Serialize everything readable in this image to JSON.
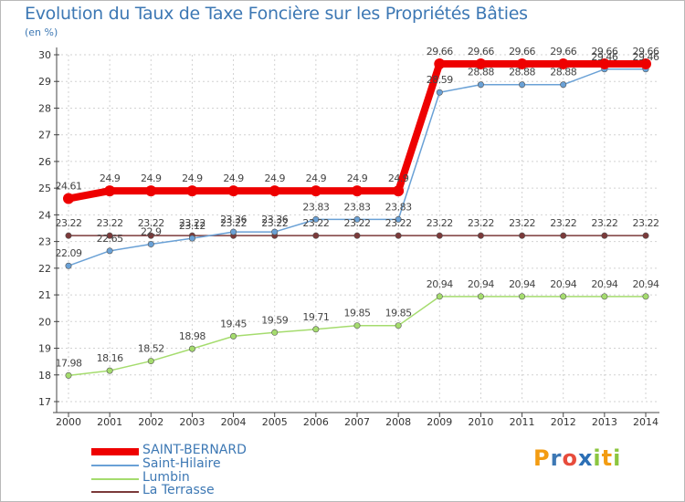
{
  "chart_data": {
    "type": "line",
    "title": "Evolution du Taux de Taxe Foncière sur les Propriétés Bâties",
    "ylabel": "(en %)",
    "xlabel": "",
    "categories": [
      "2000",
      "2001",
      "2002",
      "2003",
      "2004",
      "2005",
      "2006",
      "2007",
      "2008",
      "2009",
      "2010",
      "2011",
      "2012",
      "2013",
      "2014"
    ],
    "ylim": [
      17,
      30
    ],
    "yticks": [
      "17",
      "18",
      "19",
      "20",
      "21",
      "22",
      "23",
      "24",
      "25",
      "26",
      "27",
      "28",
      "29",
      "30"
    ],
    "series": [
      {
        "name": "SAINT-BERNARD",
        "color": "#ee0000",
        "values": [
          24.61,
          24.9,
          24.9,
          24.9,
          24.9,
          24.9,
          24.9,
          24.9,
          24.9,
          29.66,
          29.66,
          29.66,
          29.66,
          29.66,
          29.66
        ],
        "labels": [
          "24.61",
          "24.9",
          "24.9",
          "24.9",
          "24.9",
          "24.9",
          "24.9",
          "24.9",
          "24.9",
          "29.66",
          "29.66",
          "29.66",
          "29.66",
          "29.66",
          "29.66"
        ]
      },
      {
        "name": "Saint-Hilaire",
        "color": "#6aa1d6",
        "values": [
          22.09,
          22.65,
          22.9,
          23.12,
          23.36,
          23.36,
          23.83,
          23.83,
          23.83,
          28.59,
          28.88,
          28.88,
          28.88,
          29.46,
          29.46
        ],
        "labels": [
          "22.09",
          "22.65",
          "22.9",
          "23.12",
          "23.36",
          "23.36",
          "23.83",
          "23.83",
          "23.83",
          "28.59",
          "28.88",
          "28.88",
          "28.88",
          "29.46",
          "29.46"
        ]
      },
      {
        "name": "Lumbin",
        "color": "#a5dc6e",
        "values": [
          17.98,
          18.16,
          18.52,
          18.98,
          19.45,
          19.59,
          19.71,
          19.85,
          19.85,
          20.94,
          20.94,
          20.94,
          20.94,
          20.94,
          20.94
        ],
        "labels": [
          "17.98",
          "18.16",
          "18.52",
          "18.98",
          "19.45",
          "19.59",
          "19.71",
          "19.85",
          "19.85",
          "20.94",
          "20.94",
          "20.94",
          "20.94",
          "20.94",
          "20.94"
        ]
      },
      {
        "name": "La Terrasse",
        "color": "#7b3a3a",
        "values": [
          23.22,
          23.22,
          23.22,
          23.22,
          23.22,
          23.22,
          23.22,
          23.22,
          23.22,
          23.22,
          23.22,
          23.22,
          23.22,
          23.22,
          23.22
        ],
        "labels": [
          "23.22",
          "23.22",
          "23.22",
          "23.22",
          "23.22",
          "23.22",
          "23.22",
          "23.22",
          "23.22",
          "23.22",
          "23.22",
          "23.22",
          "23.22",
          "23.22",
          "23.22"
        ]
      }
    ]
  },
  "legend": [
    {
      "label": "SAINT-BERNARD"
    },
    {
      "label": "Saint-Hilaire"
    },
    {
      "label": "Lumbin"
    },
    {
      "label": "La Terrasse"
    }
  ],
  "logo": {
    "letters": [
      "P",
      "r",
      "o",
      "x",
      "i",
      "t",
      "i"
    ],
    "colors": [
      "#f39c12",
      "#3d78b4",
      "#e74c3c",
      "#2c6fb5",
      "#8cc63f",
      "#f39c12",
      "#8cc63f"
    ]
  }
}
